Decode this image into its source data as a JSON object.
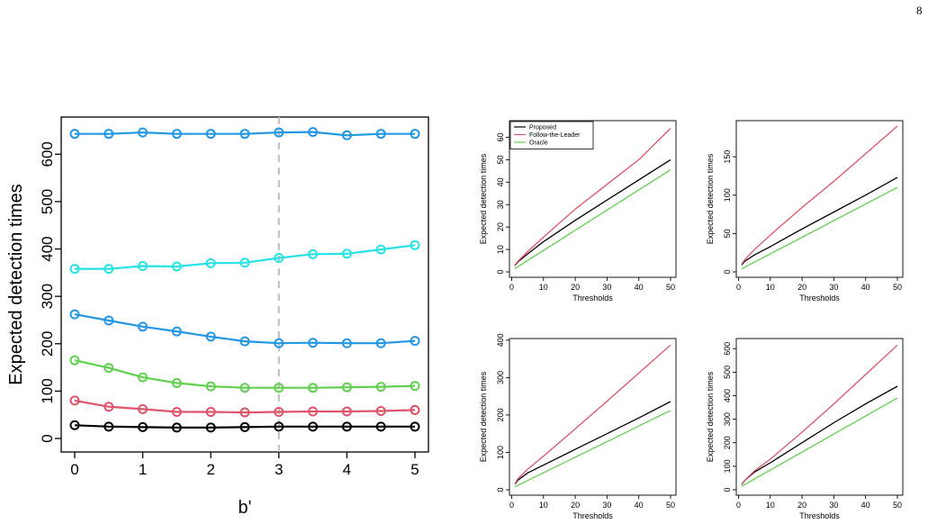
{
  "page_number": "8",
  "chart_data": [
    {
      "type": "line",
      "xlabel": "b'",
      "ylabel": "Expected detection times",
      "xlim": [
        0,
        5
      ],
      "ylim": [
        0,
        650
      ],
      "xticks": [
        0,
        1,
        2,
        3,
        4,
        5
      ],
      "yticks": [
        0,
        100,
        200,
        300,
        400,
        500,
        600
      ],
      "vline": 3,
      "x": [
        0,
        0.5,
        1,
        1.5,
        2,
        2.5,
        3,
        3.5,
        4,
        4.5,
        5
      ],
      "series": [
        {
          "color": "#2297E6",
          "values": [
            643,
            643,
            646,
            643,
            643,
            643,
            646,
            647,
            640,
            643,
            643
          ]
        },
        {
          "color": "#28E2E5",
          "values": [
            358,
            358,
            364,
            363,
            370,
            371,
            381,
            389,
            390,
            399,
            408
          ]
        },
        {
          "color": "#2297E6",
          "values": [
            262,
            249,
            236,
            226,
            215,
            205,
            201,
            202,
            201,
            201,
            206
          ]
        },
        {
          "color": "#61D04F",
          "values": [
            165,
            149,
            129,
            117,
            110,
            107,
            107,
            107,
            108,
            109,
            111
          ]
        },
        {
          "color": "#DF536B",
          "values": [
            80,
            67,
            62,
            56,
            56,
            55,
            56,
            57,
            57,
            58,
            60
          ]
        },
        {
          "color": "#000000",
          "values": [
            28,
            25,
            24,
            23,
            23,
            24,
            25,
            25,
            25,
            25,
            25
          ]
        }
      ]
    },
    {
      "type": "line",
      "xlabel": "Thresholds",
      "ylabel": "Expected detection times",
      "xlim": [
        1,
        50
      ],
      "ylim": [
        0,
        65
      ],
      "xticks": [
        0,
        10,
        20,
        30,
        40,
        50
      ],
      "yticks": [
        0,
        10,
        20,
        30,
        40,
        50,
        60
      ],
      "legend": "top-left",
      "series": [
        {
          "name": "Proposed",
          "color": "#000000",
          "x": [
            1,
            2,
            5,
            10,
            20,
            30,
            40,
            50
          ],
          "values": [
            2.8,
            4.5,
            8,
            13.5,
            23,
            32,
            41,
            50
          ]
        },
        {
          "name": "Follow-the-Leader",
          "color": "#DF536B",
          "x": [
            1,
            2,
            5,
            10,
            20,
            30,
            40,
            50
          ],
          "values": [
            3,
            4.8,
            9,
            15.5,
            28,
            39,
            50,
            64
          ]
        },
        {
          "name": "Oracle",
          "color": "#61D04F",
          "x": [
            1,
            50
          ],
          "values": [
            1.5,
            45.5
          ]
        }
      ]
    },
    {
      "type": "line",
      "xlabel": "Thresholds",
      "ylabel": "Expected detection times",
      "xlim": [
        1,
        50
      ],
      "ylim": [
        0,
        190
      ],
      "xticks": [
        0,
        10,
        20,
        30,
        40,
        50
      ],
      "yticks": [
        0,
        50,
        100,
        150
      ],
      "series": [
        {
          "color": "#000000",
          "x": [
            1,
            2,
            5,
            10,
            20,
            30,
            40,
            50
          ],
          "values": [
            9,
            14,
            22,
            33,
            56,
            78,
            100,
            123
          ]
        },
        {
          "color": "#DF536B",
          "x": [
            1,
            2,
            5,
            10,
            20,
            30,
            40,
            50
          ],
          "values": [
            10,
            16,
            29,
            48,
            84,
            118,
            154,
            190
          ]
        },
        {
          "color": "#61D04F",
          "x": [
            1,
            50
          ],
          "values": [
            4,
            110
          ]
        }
      ]
    },
    {
      "type": "line",
      "xlabel": "Thresholds",
      "ylabel": "Expected detection times",
      "xlim": [
        1,
        50
      ],
      "ylim": [
        0,
        390
      ],
      "xticks": [
        0,
        10,
        20,
        30,
        40,
        50
      ],
      "yticks": [
        0,
        100,
        200,
        300,
        400
      ],
      "series": [
        {
          "color": "#000000",
          "x": [
            1,
            2,
            5,
            10,
            20,
            30,
            40,
            50
          ],
          "values": [
            15,
            26,
            45,
            66,
            108,
            150,
            192,
            236
          ]
        },
        {
          "color": "#DF536B",
          "x": [
            1,
            2,
            5,
            10,
            20,
            30,
            40,
            50
          ],
          "values": [
            16,
            30,
            55,
            90,
            163,
            237,
            312,
            387
          ]
        },
        {
          "color": "#61D04F",
          "x": [
            1,
            50
          ],
          "values": [
            8,
            212
          ]
        }
      ]
    },
    {
      "type": "line",
      "xlabel": "Thresholds",
      "ylabel": "Expected detection times",
      "xlim": [
        1,
        50
      ],
      "ylim": [
        0,
        620
      ],
      "xticks": [
        0,
        10,
        20,
        30,
        40,
        50
      ],
      "yticks": [
        0,
        100,
        200,
        300,
        400,
        500,
        600
      ],
      "series": [
        {
          "color": "#000000",
          "x": [
            1,
            2,
            5,
            10,
            20,
            30,
            40,
            50
          ],
          "values": [
            22,
            40,
            75,
            115,
            200,
            285,
            365,
            440
          ]
        },
        {
          "color": "#DF536B",
          "x": [
            1,
            2,
            5,
            10,
            20,
            30,
            40,
            50
          ],
          "values": [
            22,
            40,
            80,
            130,
            245,
            365,
            490,
            615
          ]
        },
        {
          "color": "#61D04F",
          "x": [
            1,
            50
          ],
          "values": [
            15,
            390
          ]
        }
      ]
    }
  ]
}
